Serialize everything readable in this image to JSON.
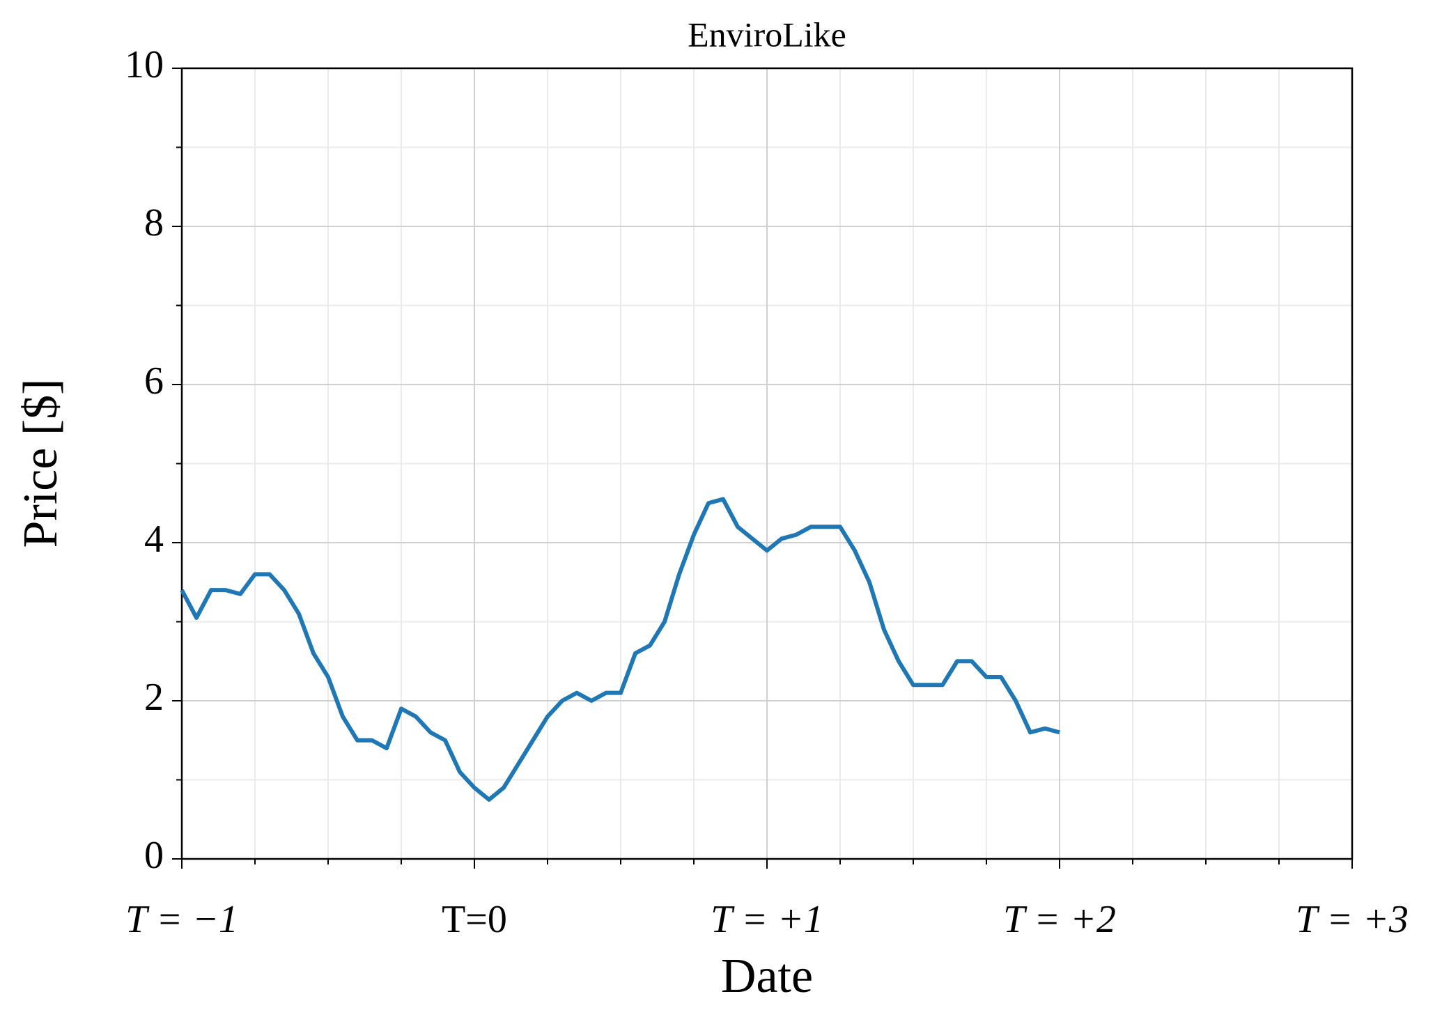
{
  "chart_data": {
    "type": "line",
    "title": "EnviroLike",
    "x_label": "Date",
    "y_label": "Price [$]",
    "x": [
      -1,
      -0.95,
      -0.9,
      -0.85,
      -0.8,
      -0.75,
      -0.7,
      -0.65,
      -0.6,
      -0.55,
      -0.5,
      -0.45,
      -0.4,
      -0.35,
      -0.3,
      -0.25,
      -0.2,
      -0.15,
      -0.1,
      -0.05,
      0,
      0.05,
      0.1,
      0.15,
      0.2,
      0.25,
      0.3,
      0.35,
      0.4,
      0.45,
      0.5,
      0.55,
      0.6,
      0.65,
      0.7,
      0.75,
      0.8,
      0.85,
      0.9,
      0.95,
      1,
      1.05,
      1.1,
      1.15,
      1.2,
      1.25,
      1.3,
      1.35,
      1.4,
      1.45,
      1.5,
      1.55,
      1.6,
      1.65,
      1.7,
      1.75,
      1.8,
      1.85,
      1.9,
      1.95,
      2
    ],
    "series": [
      {
        "name": "EnviroLike",
        "color": "#1f77b4",
        "values": [
          3.4,
          3.05,
          3.4,
          3.4,
          3.35,
          3.6,
          3.6,
          3.4,
          3.1,
          2.6,
          2.3,
          1.8,
          1.5,
          1.5,
          1.4,
          1.9,
          1.8,
          1.6,
          1.5,
          1.1,
          0.9,
          0.75,
          0.9,
          1.2,
          1.5,
          1.8,
          2.0,
          2.1,
          2.0,
          2.1,
          2.1,
          2.6,
          2.7,
          3.0,
          3.6,
          4.1,
          4.5,
          4.55,
          4.2,
          4.05,
          3.9,
          4.05,
          4.1,
          4.2,
          4.2,
          4.2,
          3.9,
          3.5,
          2.9,
          2.5,
          2.2,
          2.2,
          2.2,
          2.5,
          2.5,
          2.3,
          2.3,
          2.0,
          1.6,
          1.65,
          1.6
        ]
      }
    ],
    "xlim": [
      -1,
      3
    ],
    "ylim": [
      0,
      10
    ],
    "xticks": [
      {
        "value": -1,
        "label": "T = −1"
      },
      {
        "value": 0,
        "label": "T=0"
      },
      {
        "value": 1,
        "label": "T = +1"
      },
      {
        "value": 2,
        "label": "T = +2"
      },
      {
        "value": 3,
        "label": "T = +3"
      }
    ],
    "yticks": [
      0,
      2,
      4,
      6,
      8,
      10
    ],
    "xminorticks": [
      -0.75,
      -0.5,
      -0.25,
      0.25,
      0.5,
      0.75,
      1.25,
      1.5,
      1.75,
      2.25,
      2.5,
      2.75
    ],
    "yminorticks": [
      1,
      3,
      5,
      7,
      9
    ],
    "grid": true
  }
}
